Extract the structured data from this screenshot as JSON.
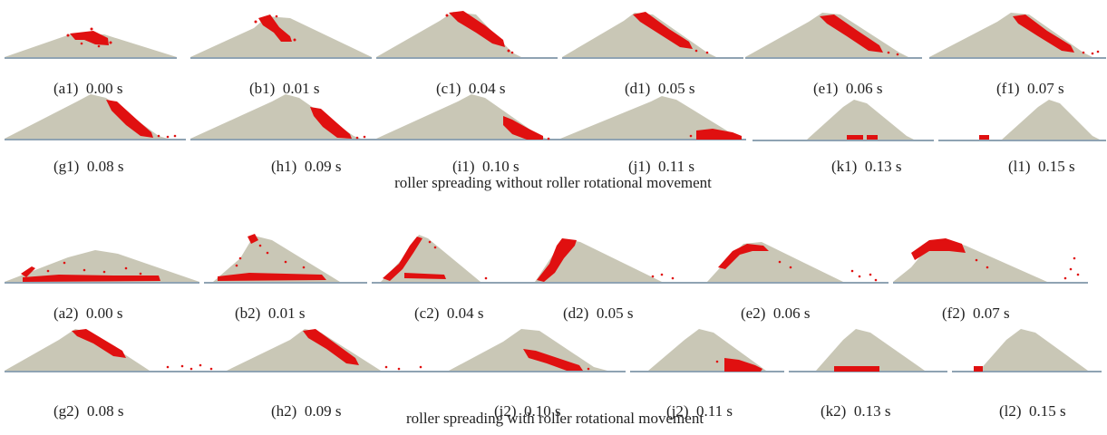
{
  "colors": {
    "powder": "#c9c7b6",
    "baseline": "#8fa3b3",
    "tracer": "#e01010"
  },
  "groups": [
    {
      "title": "roller spreading without roller rotational movement",
      "panels": [
        {
          "label": "(a1)",
          "time": "0.00 s"
        },
        {
          "label": "(b1)",
          "time": "0.01 s"
        },
        {
          "label": "(c1)",
          "time": "0.04 s"
        },
        {
          "label": "(d1)",
          "time": "0.05 s"
        },
        {
          "label": "(e1)",
          "time": "0.06 s"
        },
        {
          "label": "(f1)",
          "time": "0.07 s"
        },
        {
          "label": "(g1)",
          "time": "0.08 s"
        },
        {
          "label": "(h1)",
          "time": "0.09 s"
        },
        {
          "label": "(i1)",
          "time": "0.10 s"
        },
        {
          "label": "(j1)",
          "time": "0.11 s"
        },
        {
          "label": "(k1)",
          "time": "0.13 s"
        },
        {
          "label": "(l1)",
          "time": "0.15 s"
        }
      ]
    },
    {
      "title": "roller spreading with roller rotational movement",
      "panels": [
        {
          "label": "(a2)",
          "time": "0.00 s"
        },
        {
          "label": "(b2)",
          "time": "0.01 s"
        },
        {
          "label": "(c2)",
          "time": "0.04 s"
        },
        {
          "label": "(d2)",
          "time": "0.05 s"
        },
        {
          "label": "(e2)",
          "time": "0.06 s"
        },
        {
          "label": "(f2)",
          "time": "0.07 s"
        },
        {
          "label": "(g2)",
          "time": "0.08 s"
        },
        {
          "label": "(h2)",
          "time": "0.09 s"
        },
        {
          "label": "(i2)",
          "time": "0.10 s"
        },
        {
          "label": "(j2)",
          "time": "0.11 s"
        },
        {
          "label": "(k2)",
          "time": "0.13 s"
        },
        {
          "label": "(l2)",
          "time": "0.15 s"
        }
      ]
    }
  ]
}
